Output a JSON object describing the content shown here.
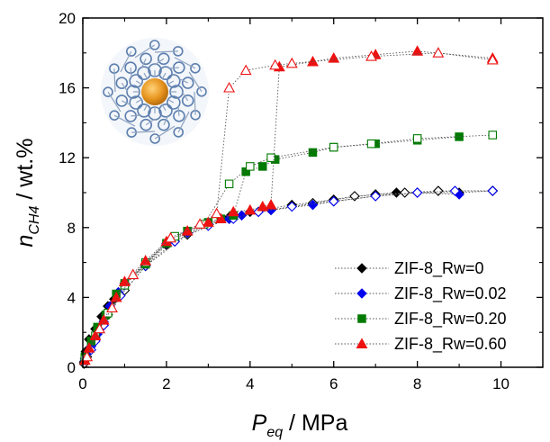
{
  "chart_data": {
    "type": "scatter",
    "title": "",
    "xlabel_main": "P",
    "xlabel_sub": "eq",
    "xlabel_unit": " / MPa",
    "ylabel_main": "n",
    "ylabel_sub": "CH4",
    "ylabel_unit": " / wt.%",
    "xlim": [
      0,
      11
    ],
    "ylim": [
      0,
      20
    ],
    "xticks": [
      0,
      2,
      4,
      6,
      8,
      10
    ],
    "yticks": [
      0,
      4,
      8,
      12,
      16,
      20
    ],
    "legend_position": "bottom-right",
    "grid": false,
    "series": [
      {
        "name": "ZIF-8_Rw=0",
        "color": "#000000",
        "marker": "diamond",
        "points": [
          [
            0.03,
            0.3
          ],
          [
            0.07,
            0.9
          ],
          [
            0.15,
            1.6
          ],
          [
            0.3,
            2.2
          ],
          [
            0.45,
            2.9
          ],
          [
            0.6,
            3.5
          ],
          [
            0.75,
            3.9
          ],
          [
            1.0,
            4.8
          ],
          [
            1.5,
            5.8
          ],
          [
            2.0,
            7.0
          ],
          [
            2.5,
            7.6
          ],
          [
            3.0,
            8.2
          ],
          [
            3.5,
            8.6
          ],
          [
            4.0,
            8.9
          ],
          [
            5.0,
            9.3
          ],
          [
            6.0,
            9.6
          ],
          [
            7.0,
            9.9
          ],
          [
            7.5,
            10.0
          ],
          [
            8.0,
            10.0
          ],
          [
            9.0,
            10.0
          ],
          [
            9.8,
            10.1
          ]
        ],
        "open": [
          [
            0.03,
            0.2
          ],
          [
            0.1,
            0.6
          ],
          [
            0.3,
            1.7
          ],
          [
            0.6,
            3.0
          ],
          [
            1.0,
            4.4
          ],
          [
            1.5,
            5.8
          ],
          [
            2.5,
            7.6
          ],
          [
            3.5,
            8.5
          ],
          [
            4.5,
            9.0
          ],
          [
            5.5,
            9.4
          ],
          [
            6.5,
            9.8
          ],
          [
            7.7,
            10.0
          ],
          [
            8.5,
            10.1
          ],
          [
            9.8,
            10.1
          ]
        ]
      },
      {
        "name": "ZIF-8_Rw=0.02",
        "color": "#0000ee",
        "marker": "diamond",
        "points": [
          [
            0.05,
            0.5
          ],
          [
            0.1,
            0.8
          ],
          [
            0.2,
            1.2
          ],
          [
            0.35,
            1.9
          ],
          [
            0.5,
            2.6
          ],
          [
            0.65,
            3.5
          ],
          [
            0.85,
            4.3
          ],
          [
            1.0,
            4.7
          ],
          [
            1.5,
            5.9
          ],
          [
            2.0,
            7.1
          ],
          [
            2.5,
            7.7
          ],
          [
            3.0,
            8.2
          ],
          [
            3.5,
            8.5
          ],
          [
            3.8,
            8.7
          ],
          [
            4.2,
            8.9
          ],
          [
            4.5,
            9.0
          ],
          [
            5.5,
            9.3
          ],
          [
            6.0,
            9.5
          ],
          [
            7.0,
            9.8
          ],
          [
            8.0,
            10.0
          ],
          [
            9.0,
            9.9
          ]
        ],
        "open": [
          [
            0.05,
            0.4
          ],
          [
            0.2,
            1.0
          ],
          [
            0.3,
            1.5
          ],
          [
            0.5,
            2.4
          ],
          [
            0.9,
            4.1
          ],
          [
            1.5,
            5.8
          ],
          [
            2.2,
            7.2
          ],
          [
            3.0,
            8.1
          ],
          [
            3.6,
            8.5
          ],
          [
            4.2,
            8.9
          ],
          [
            5.0,
            9.2
          ],
          [
            6.0,
            9.5
          ],
          [
            7.0,
            9.8
          ],
          [
            8.0,
            10.0
          ],
          [
            8.9,
            10.1
          ],
          [
            9.8,
            10.1
          ]
        ]
      },
      {
        "name": "ZIF-8_Rw=0.20",
        "color": "#007a00",
        "marker": "square",
        "points": [
          [
            0.05,
            0.6
          ],
          [
            0.2,
            1.5
          ],
          [
            0.35,
            2.3
          ],
          [
            0.55,
            3.0
          ],
          [
            0.8,
            4.2
          ],
          [
            1.0,
            4.8
          ],
          [
            1.5,
            5.9
          ],
          [
            2.0,
            7.1
          ],
          [
            2.5,
            7.8
          ],
          [
            3.0,
            8.3
          ],
          [
            3.3,
            8.5
          ],
          [
            3.6,
            8.7
          ],
          [
            3.9,
            11.2
          ],
          [
            4.3,
            11.5
          ],
          [
            4.6,
            11.9
          ],
          [
            5.5,
            12.3
          ],
          [
            6.0,
            12.6
          ],
          [
            7.0,
            12.8
          ],
          [
            8.0,
            13.0
          ],
          [
            9.0,
            13.2
          ]
        ],
        "open": [
          [
            0.05,
            0.5
          ],
          [
            0.3,
            1.8
          ],
          [
            0.6,
            3.1
          ],
          [
            1.0,
            4.7
          ],
          [
            1.5,
            6.0
          ],
          [
            2.2,
            7.5
          ],
          [
            2.9,
            8.2
          ],
          [
            3.5,
            10.5
          ],
          [
            4.0,
            11.5
          ],
          [
            4.5,
            12.0
          ],
          [
            6.0,
            12.6
          ],
          [
            6.9,
            12.8
          ],
          [
            8.0,
            13.1
          ],
          [
            9.8,
            13.3
          ]
        ]
      },
      {
        "name": "ZIF-8_Rw=0.60",
        "color": "#ee1111",
        "marker": "triangle",
        "points": [
          [
            0.05,
            0.4
          ],
          [
            0.15,
            1.1
          ],
          [
            0.3,
            1.8
          ],
          [
            0.5,
            2.7
          ],
          [
            0.8,
            4.0
          ],
          [
            1.0,
            4.9
          ],
          [
            1.5,
            6.1
          ],
          [
            2.0,
            7.2
          ],
          [
            2.5,
            7.8
          ],
          [
            3.0,
            8.3
          ],
          [
            3.3,
            8.5
          ],
          [
            3.6,
            8.9
          ],
          [
            4.0,
            9.0
          ],
          [
            4.3,
            9.2
          ],
          [
            4.5,
            9.3
          ],
          [
            4.7,
            17.2
          ],
          [
            5.5,
            17.5
          ],
          [
            6.0,
            17.7
          ],
          [
            7.0,
            17.9
          ],
          [
            8.0,
            18.1
          ],
          [
            9.8,
            17.7
          ]
        ],
        "open": [
          [
            0.1,
            0.6
          ],
          [
            0.4,
            2.2
          ],
          [
            0.7,
            3.4
          ],
          [
            1.2,
            5.3
          ],
          [
            2.1,
            7.4
          ],
          [
            2.8,
            8.2
          ],
          [
            3.2,
            8.8
          ],
          [
            3.5,
            16.0
          ],
          [
            3.9,
            17.0
          ],
          [
            4.6,
            17.3
          ],
          [
            5.0,
            17.4
          ],
          [
            6.9,
            17.8
          ],
          [
            8.5,
            18.0
          ],
          [
            9.8,
            17.6
          ]
        ]
      }
    ]
  }
}
